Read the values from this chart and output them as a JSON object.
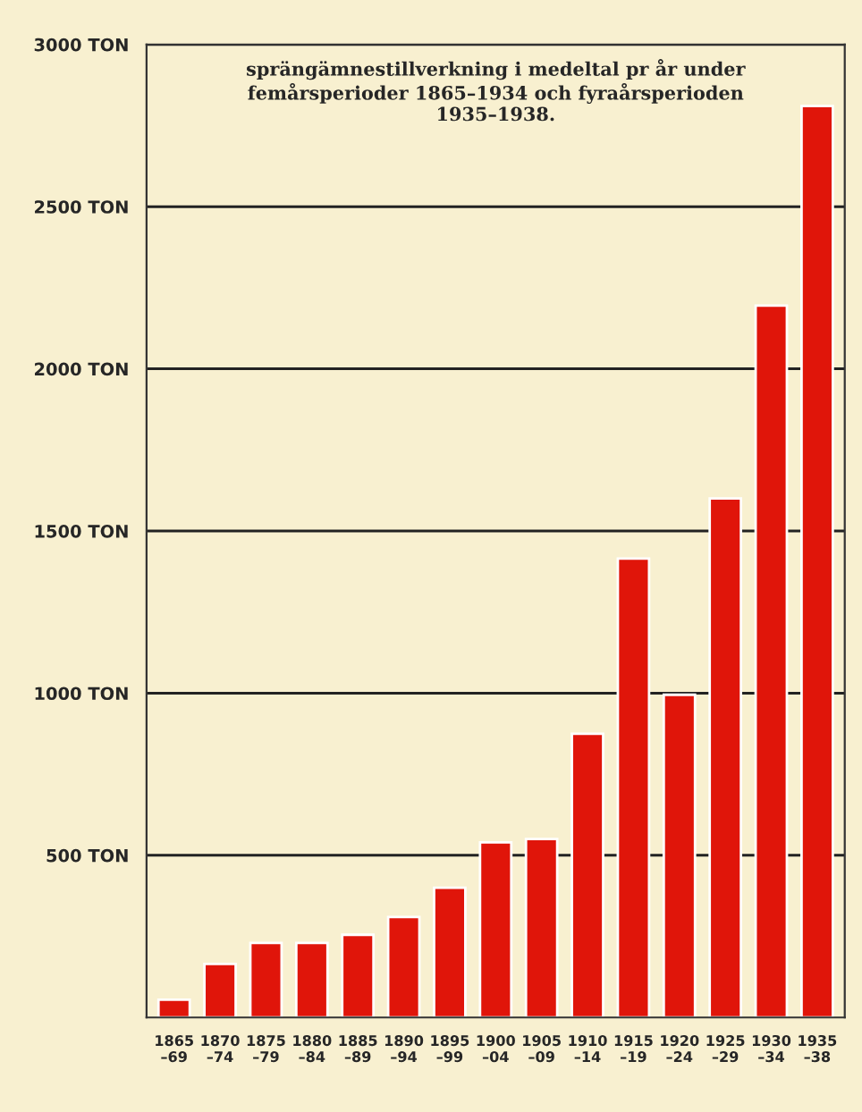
{
  "chart_data": {
    "type": "bar",
    "title": "sprängämnestillverkning i medeltal pr år under femårsperioder 1865–1934 och fyraårsperioden 1935–1938.",
    "categories": [
      "1865\n–69",
      "1870\n–74",
      "1875\n–79",
      "1880\n–84",
      "1885\n–89",
      "1890\n–94",
      "1895\n–99",
      "1900\n–04",
      "1905\n–09",
      "1910\n–14",
      "1915\n–19",
      "1920\n–24",
      "1925\n–29",
      "1930\n–34",
      "1935\n–38"
    ],
    "values": [
      55,
      165,
      230,
      230,
      255,
      310,
      400,
      540,
      550,
      875,
      1415,
      995,
      1600,
      2195,
      2810
    ],
    "color": "#e0150a",
    "ylim": [
      0,
      3000
    ],
    "yticks": [
      {
        "value": 500,
        "label": "500 TON"
      },
      {
        "value": 1000,
        "label": "1000 TON"
      },
      {
        "value": 1500,
        "label": "1500 TON"
      },
      {
        "value": 2000,
        "label": "2000 TON"
      },
      {
        "value": 2500,
        "label": "2500 TON"
      },
      {
        "value": 3000,
        "label": "3000 TON"
      }
    ],
    "grid": "y"
  }
}
